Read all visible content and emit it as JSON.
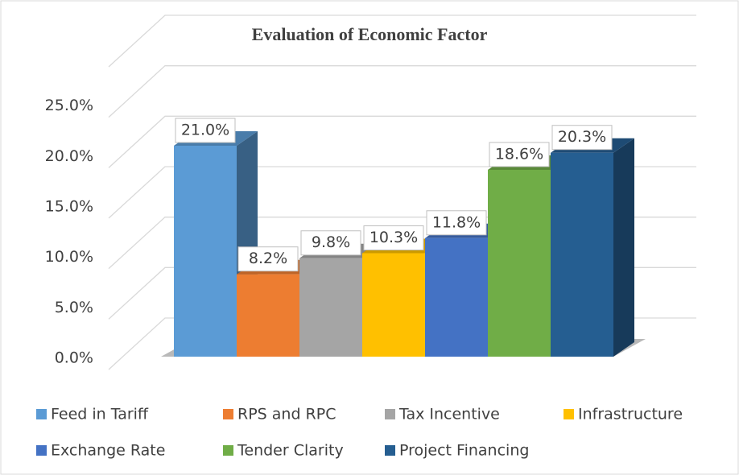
{
  "chart_data": {
    "type": "bar3d",
    "title": "Evaluation of Economic Factor",
    "categories": [
      null
    ],
    "series": [
      {
        "name": "Feed in Tariff",
        "color": "#5b9bd5",
        "values": [
          21.0
        ],
        "value_labels": [
          "21.0%"
        ]
      },
      {
        "name": "RPS and RPC",
        "color": "#ed7d31",
        "values": [
          8.2
        ],
        "value_labels": [
          "8.2%"
        ]
      },
      {
        "name": "Tax Incentive",
        "color": "#a5a5a5",
        "values": [
          9.8
        ],
        "value_labels": [
          "9.8%"
        ]
      },
      {
        "name": "Infrastructure",
        "color": "#ffc000",
        "values": [
          10.3
        ],
        "value_labels": [
          "10.3%"
        ]
      },
      {
        "name": "Exchange Rate",
        "color": "#4472c4",
        "values": [
          11.8
        ],
        "value_labels": [
          "11.8%"
        ]
      },
      {
        "name": "Tender Clarity",
        "color": "#70ad47",
        "values": [
          18.6
        ],
        "value_labels": [
          "18.6%"
        ]
      },
      {
        "name": "Project Financing",
        "color": "#255e91",
        "values": [
          20.3
        ],
        "value_labels": [
          "20.3%"
        ]
      }
    ],
    "ylim": [
      0,
      30
    ],
    "yticks": [
      {
        "value": 0,
        "label": "0.0%"
      },
      {
        "value": 5,
        "label": "5.0%"
      },
      {
        "value": 10,
        "label": "10.0%"
      },
      {
        "value": 15,
        "label": "15.0%"
      },
      {
        "value": 20,
        "label": "20.0%"
      },
      {
        "value": 25,
        "label": "25.0%"
      }
    ],
    "grid": true,
    "legend": "bottom"
  }
}
